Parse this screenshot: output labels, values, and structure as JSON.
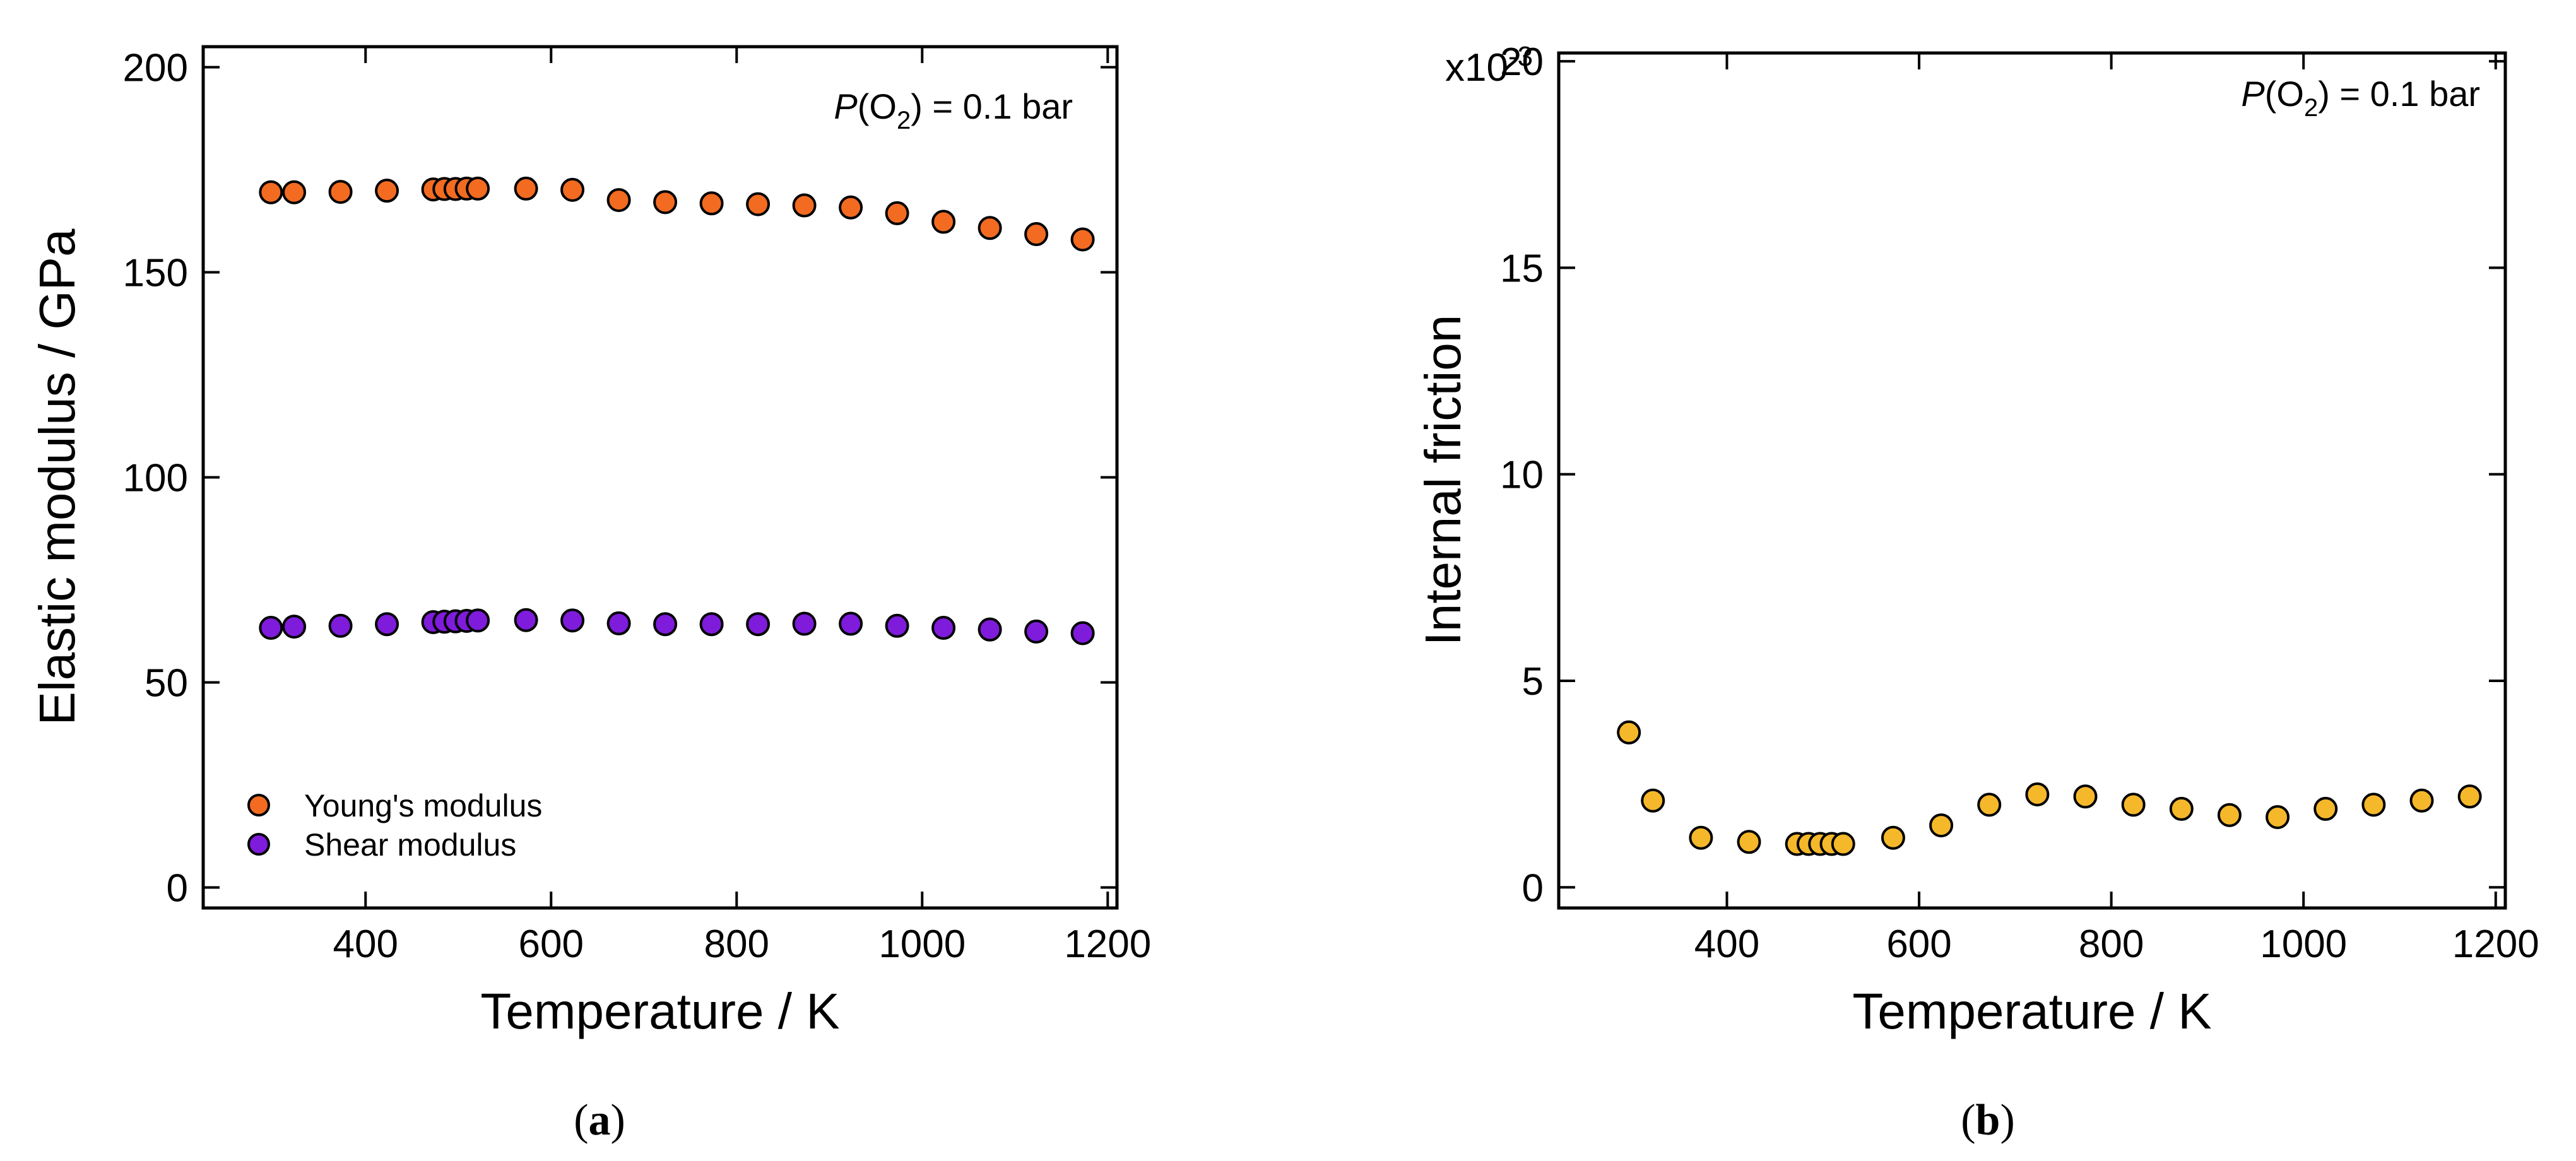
{
  "chart_data": [
    {
      "type": "scatter",
      "xlabel": "Temperature / K",
      "ylabel": "Elastic modulus / GPa",
      "xlim": [
        225,
        1210
      ],
      "ylim": [
        -5,
        205
      ],
      "x_ticks": [
        400,
        600,
        800,
        1000,
        1200
      ],
      "y_ticks": [
        0,
        50,
        100,
        150,
        200
      ],
      "grid": false,
      "legend_position": "bottom-left",
      "annotation": {
        "italic": "P",
        "open": "(O",
        "subscript": "2",
        "close": ") = 0.1 bar"
      },
      "panel_label": {
        "open": "(",
        "letter": "a",
        "close": ")"
      },
      "series": [
        {
          "name": "Young's modulus",
          "color": "#f26b21",
          "x": [
            298,
            323,
            373,
            423,
            473,
            485,
            497,
            509,
            521,
            573,
            623,
            673,
            723,
            773,
            823,
            873,
            923,
            973,
            1023,
            1073,
            1123,
            1173
          ],
          "y": [
            169.5,
            169.5,
            169.6,
            169.9,
            170.2,
            170.3,
            170.3,
            170.4,
            170.4,
            170.4,
            170.1,
            167.6,
            167.1,
            166.8,
            166.6,
            166.3,
            165.8,
            164.4,
            162.3,
            160.8,
            159.3,
            158.0
          ]
        },
        {
          "name": "Shear modulus",
          "color": "#7f1bdb",
          "x": [
            298,
            323,
            373,
            423,
            473,
            485,
            497,
            509,
            521,
            573,
            623,
            673,
            723,
            773,
            823,
            873,
            923,
            973,
            1023,
            1073,
            1123,
            1173
          ],
          "y": [
            63.3,
            63.6,
            63.8,
            64.2,
            64.7,
            64.8,
            64.9,
            65.0,
            65.1,
            65.2,
            65.1,
            64.4,
            64.2,
            64.2,
            64.2,
            64.3,
            64.3,
            63.8,
            63.3,
            62.9,
            62.4,
            62.0
          ]
        }
      ]
    },
    {
      "type": "scatter",
      "xlabel": "Temperature / K",
      "ylabel": "Internal friction",
      "xlim": [
        225,
        1210
      ],
      "ylim": [
        -0.5,
        20.2
      ],
      "x_ticks": [
        400,
        600,
        800,
        1000,
        1200
      ],
      "y_ticks": [
        0,
        5,
        10,
        15,
        20
      ],
      "y_multiplier": {
        "base": "x10",
        "exponent": "-3"
      },
      "grid": false,
      "annotation": {
        "italic": "P",
        "open": "(O",
        "subscript": "2",
        "close": ") = 0.1 bar"
      },
      "panel_label": {
        "open": "(",
        "letter": "b",
        "close": ")"
      },
      "series": [
        {
          "color": "#f5b82a",
          "x": [
            298,
            323,
            373,
            423,
            473,
            485,
            497,
            509,
            521,
            573,
            623,
            673,
            723,
            773,
            823,
            873,
            923,
            973,
            1023,
            1073,
            1123,
            1173
          ],
          "y": [
            3.75,
            2.1,
            1.2,
            1.1,
            1.05,
            1.05,
            1.05,
            1.05,
            1.05,
            1.2,
            1.5,
            2.0,
            2.25,
            2.2,
            2.0,
            1.9,
            1.75,
            1.7,
            1.9,
            2.0,
            2.1,
            2.2
          ]
        }
      ]
    }
  ]
}
